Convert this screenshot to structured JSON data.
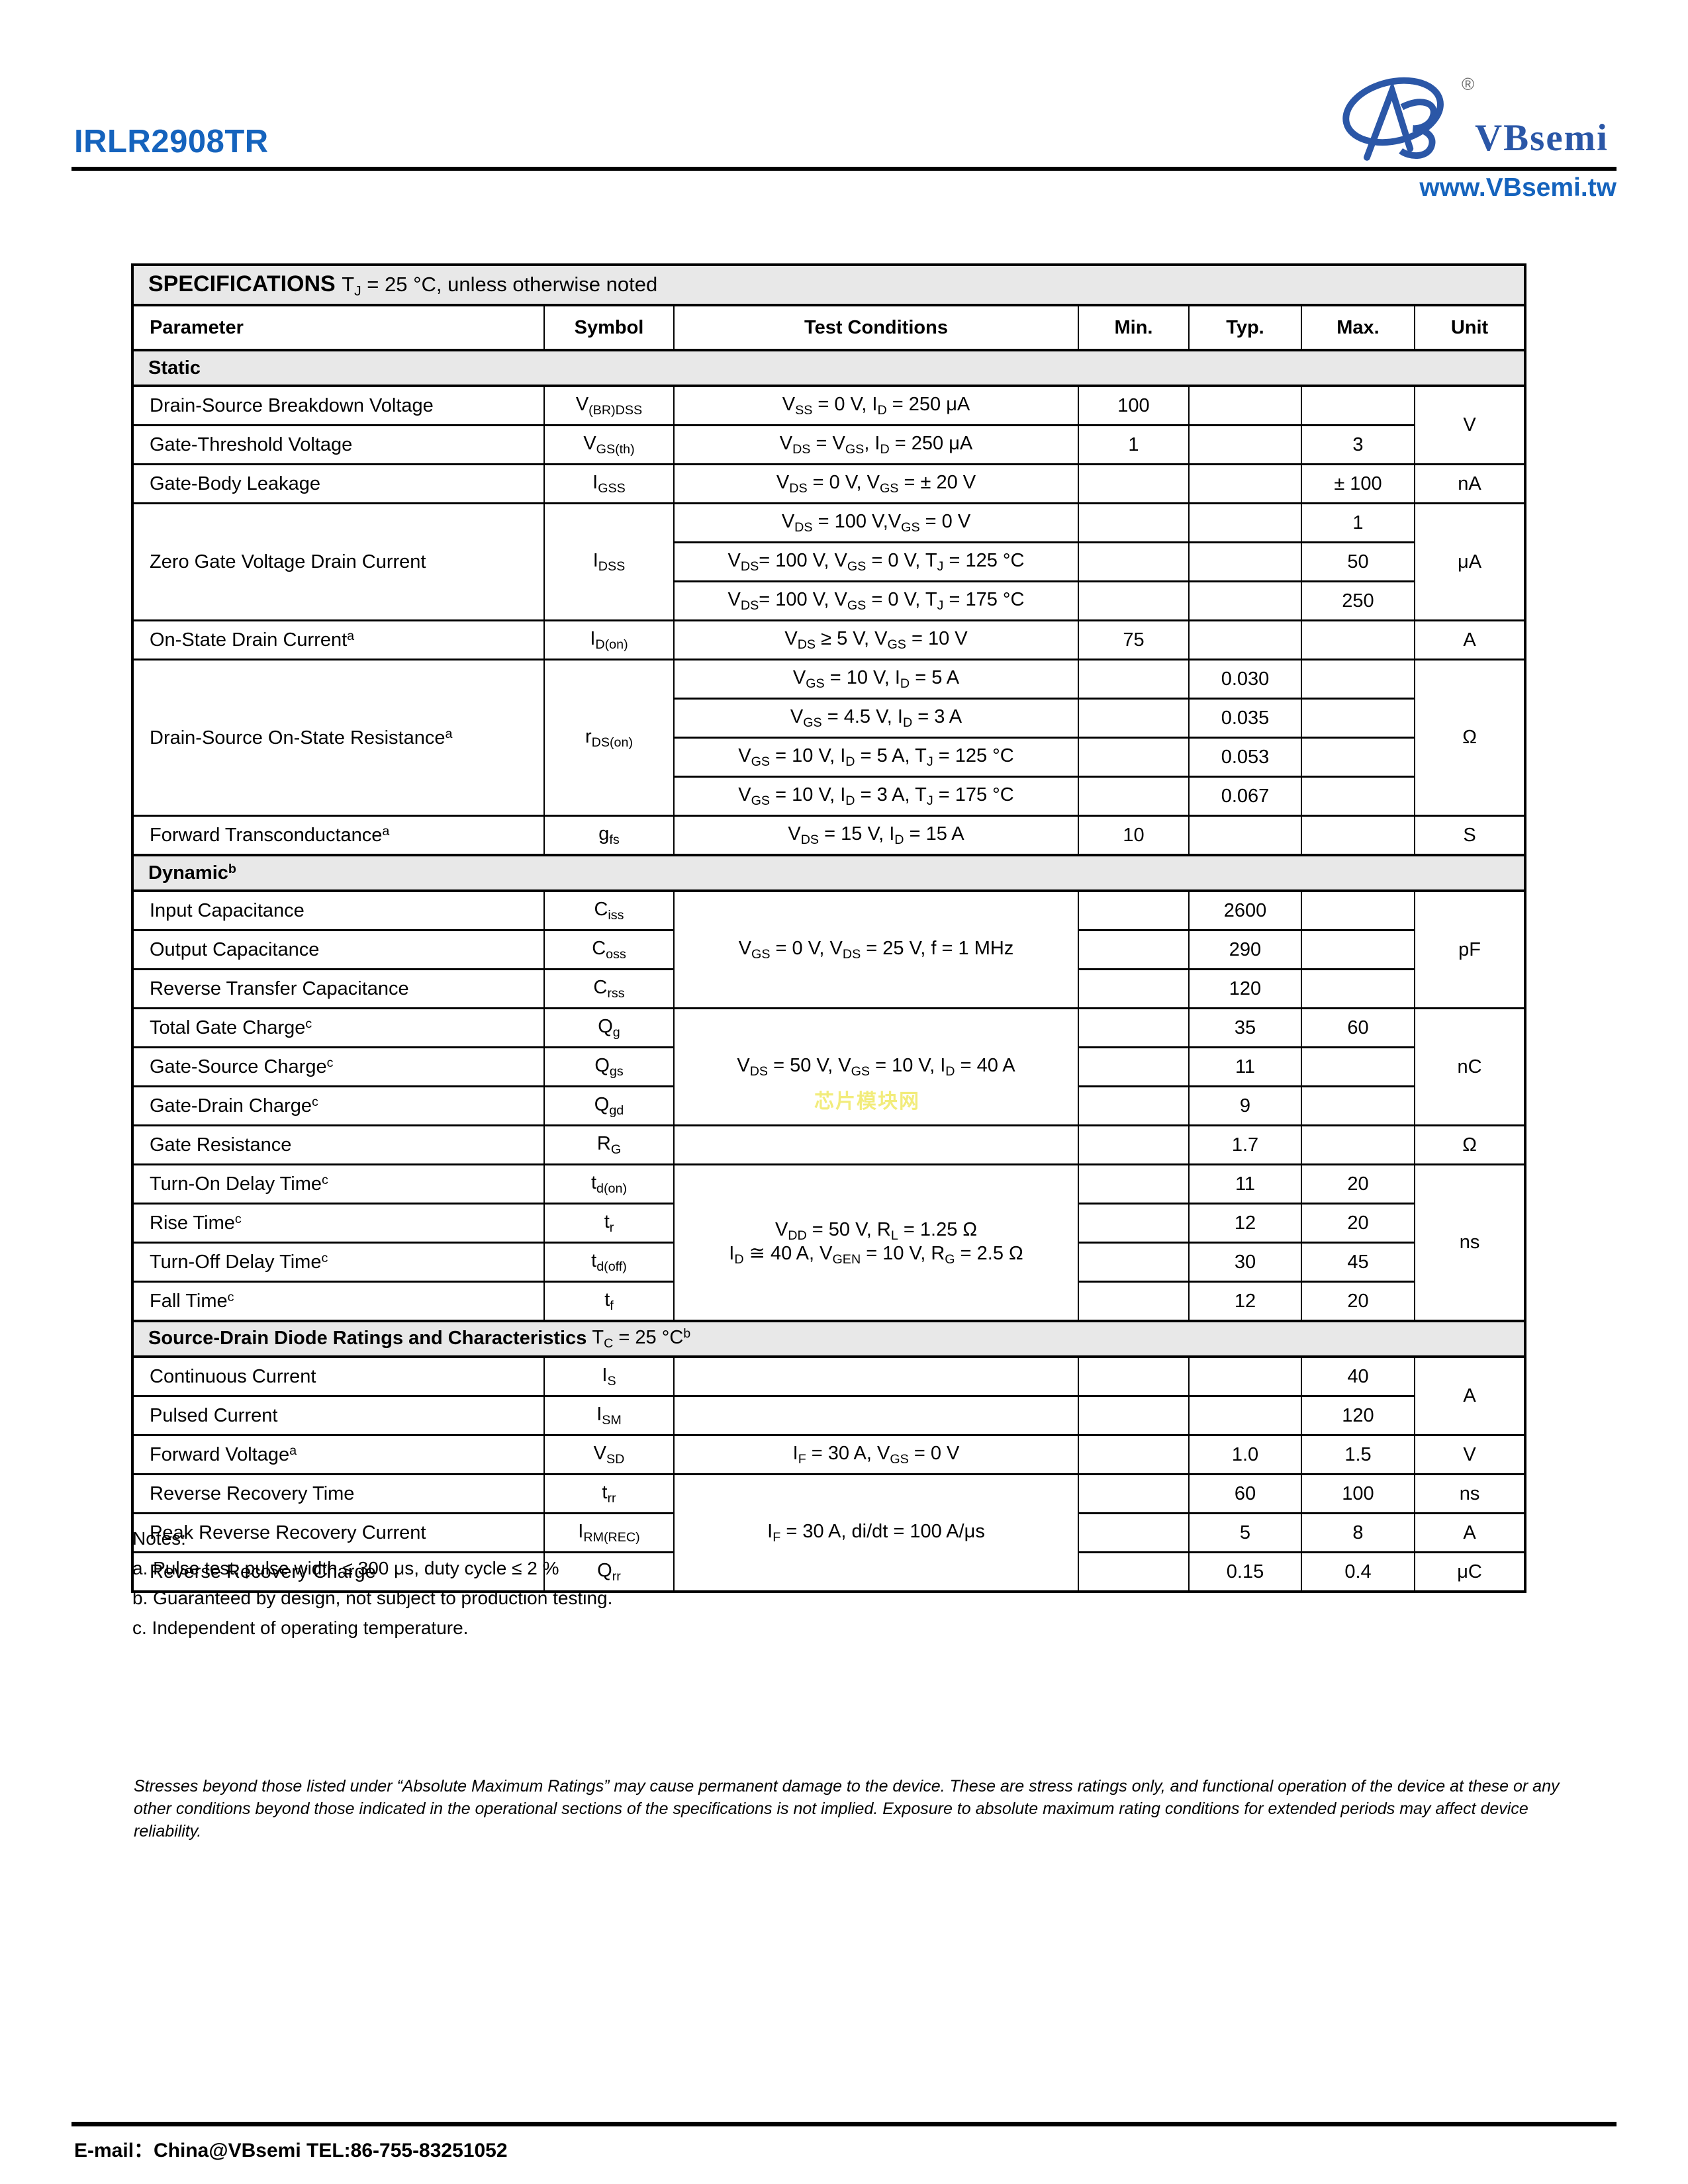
{
  "header": {
    "part_number": "IRLR2908TR",
    "brand": "VBsemi",
    "registered_mark": "®",
    "website": "www.VBsemi.tw",
    "accent_color": "#1563bd",
    "logo_color": "#2b57a7"
  },
  "table": {
    "title_bold": "SPECIFICATIONS",
    "title_note": "T_{J} = 25 °C, unless otherwise noted",
    "columns": [
      "Parameter",
      "Symbol",
      "Test Conditions",
      "Min.",
      "Typ.",
      "Max.",
      "Unit"
    ],
    "sections": [
      {
        "label_bold": "Static",
        "label_note": "",
        "rows": [
          [
            "Drain-Source Breakdown Voltage",
            "V_{(BR)DSS}",
            "V_{SS} = 0 V, I_{D} = 250 μA",
            "100",
            "",
            "",
            {
              "t": "V",
              "rs": 2
            }
          ],
          [
            "Gate-Threshold Voltage",
            "V_{GS(th)}",
            "V_{DS} = V_{GS}, I_{D} = 250 μA",
            "1",
            "",
            "3",
            null
          ],
          [
            "Gate-Body Leakage",
            "I_{GSS}",
            "V_{DS} = 0 V, V_{GS} = ± 20 V",
            "",
            "",
            "± 100",
            "nA"
          ],
          [
            {
              "t": "Zero Gate Voltage Drain Current",
              "rs": 3
            },
            {
              "t": "I_{DSS}",
              "rs": 3
            },
            "V_{DS} = 100 V,V_{GS} = 0 V",
            "",
            "",
            "1",
            {
              "t": "μA",
              "rs": 3
            }
          ],
          [
            null,
            null,
            "V_{DS}= 100 V, V_{GS} = 0 V, T_{J} = 125 °C",
            "",
            "",
            "50",
            null
          ],
          [
            null,
            null,
            "V_{DS}= 100 V, V_{GS} = 0 V, T_{J} = 175 °C",
            "",
            "",
            "250",
            null
          ],
          [
            "On-State Drain Current^{a}",
            "I_{D(on)}",
            "V_{DS} ≥ 5 V, V_{GS} = 10 V",
            "75",
            "",
            "",
            "A"
          ],
          [
            {
              "t": "Drain-Source On-State Resistance^{a}",
              "rs": 4
            },
            {
              "t": "r_{DS(on)}",
              "rs": 4
            },
            "V_{GS} = 10 V, I_{D} = 5 A",
            "",
            "0.030",
            "",
            {
              "t": "Ω",
              "rs": 4
            }
          ],
          [
            null,
            null,
            "V_{GS} = 4.5 V, I_{D} = 3 A",
            "",
            "0.035",
            "",
            null
          ],
          [
            null,
            null,
            "V_{GS} = 10 V, I_{D} = 5 A, T_{J} = 125 °C",
            "",
            "0.053",
            "",
            null
          ],
          [
            null,
            null,
            "V_{GS} = 10 V, I_{D} = 3 A, T_{J} = 175 °C",
            "",
            "0.067",
            "",
            null
          ],
          [
            "Forward Transconductance^{a}",
            "g_{fs}",
            "V_{DS} = 15 V, I_{D} = 15 A",
            "10",
            "",
            "",
            "S"
          ]
        ]
      },
      {
        "label_bold": "Dynamic^{b}",
        "label_note": "",
        "rows": [
          [
            "Input Capacitance",
            "C_{iss}",
            {
              "t": "V_{GS} = 0 V, V_{DS} = 25 V, f = 1 MHz",
              "rs": 3
            },
            "",
            "2600",
            "",
            {
              "t": "pF",
              "rs": 3
            }
          ],
          [
            "Output Capacitance",
            "C_{oss}",
            null,
            "",
            "290",
            "",
            null
          ],
          [
            "Reverse Transfer Capacitance",
            "C_{rss}",
            null,
            "",
            "120",
            "",
            null
          ],
          [
            "Total Gate Charge^{c}",
            "Q_{g}",
            {
              "t": "V_{DS} = 50 V, V_{GS} = 10 V, I_{D} = 40 A",
              "rs": 3
            },
            "",
            "35",
            "60",
            {
              "t": "nC",
              "rs": 3
            }
          ],
          [
            "Gate-Source Charge^{c}",
            "Q_{gs}",
            null,
            "",
            "11",
            "",
            null
          ],
          [
            "Gate-Drain Charge^{c}",
            "Q_{gd}",
            null,
            "",
            "9",
            "",
            null
          ],
          [
            "Gate Resistance",
            "R_{G}",
            "",
            "",
            "1.7",
            "",
            "Ω"
          ],
          [
            "Turn-On Delay Time^{c}",
            "t_{d(on)}",
            {
              "t": "V_{DD} = 50 V, R_{L} = 1.25 Ω\nI_{D} ≅ 40 A, V_{GEN} = 10 V, R_{G} = 2.5 Ω",
              "rs": 4
            },
            "",
            "11",
            "20",
            {
              "t": "ns",
              "rs": 4
            }
          ],
          [
            "Rise Time^{c}",
            "t_{r}",
            null,
            "",
            "12",
            "20",
            null
          ],
          [
            "Turn-Off Delay Time^{c}",
            "t_{d(off)}",
            null,
            "",
            "30",
            "45",
            null
          ],
          [
            "Fall Time^{c}",
            "t_{f}",
            null,
            "",
            "12",
            "20",
            null
          ]
        ]
      },
      {
        "label_bold": "Source-Drain Diode Ratings and Characteristics",
        "label_note": "T_{C} = 25 °C^{b}",
        "rows": [
          [
            "Continuous Current",
            "I_{S}",
            "",
            "",
            "",
            "40",
            {
              "t": "A",
              "rs": 2
            }
          ],
          [
            "Pulsed Current",
            "I_{SM}",
            "",
            "",
            "",
            "120",
            null
          ],
          [
            "Forward Voltage^{a}",
            "V_{SD}",
            "I_{F} = 30 A, V_{GS} = 0 V",
            "",
            "1.0",
            "1.5",
            "V"
          ],
          [
            "Reverse Recovery Time",
            "t_{rr}",
            {
              "t": "I_{F} = 30 A, di/dt = 100 A/μs",
              "rs": 3
            },
            "",
            "60",
            "100",
            "ns"
          ],
          [
            "Peak Reverse Recovery Current",
            "I_{RM(REC)}",
            null,
            "",
            "5",
            "8",
            "A"
          ],
          [
            "Reverse Recovery Charge",
            "Q_{rr}",
            null,
            "",
            "0.15",
            "0.4",
            "μC"
          ]
        ]
      }
    ]
  },
  "watermark": "芯片模块网",
  "notes": {
    "title": "Notes:",
    "items": [
      "a. Pulse test; pulse width ≤ 300 μs, duty cycle ≤ 2 %",
      "b. Guaranteed by design, not subject to production testing.",
      "c. Independent of operating temperature."
    ]
  },
  "disclaimer": "Stresses beyond those listed under “Absolute Maximum Ratings” may cause permanent damage to the device. These are stress ratings only, and functional operation of the device at these or any other conditions beyond those indicated in the operational sections of the specifications is not implied. Exposure to absolute maximum rating conditions for extended periods may affect device reliability.",
  "footer": {
    "contact": "E-mail：China@VBsemi TEL:86-755-83251052"
  }
}
